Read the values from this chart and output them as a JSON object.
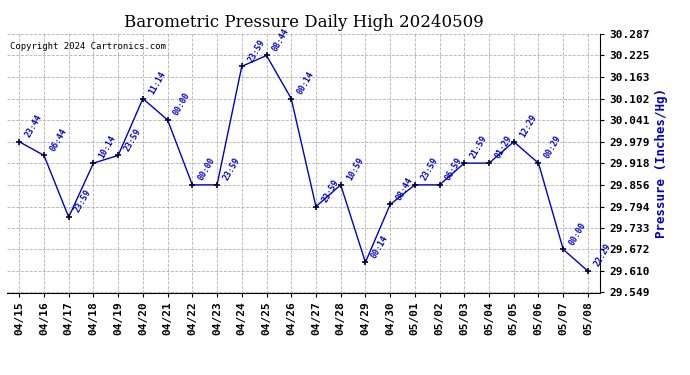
{
  "title": "Barometric Pressure Daily High 20240509",
  "ylabel": "Pressure (Inches/Hg)",
  "copyright": "Copyright 2024 Cartronics.com",
  "ylim": [
    29.549,
    30.287
  ],
  "yticks": [
    29.549,
    29.61,
    29.672,
    29.733,
    29.794,
    29.856,
    29.918,
    29.979,
    30.041,
    30.102,
    30.163,
    30.225,
    30.287
  ],
  "line_color": "#0000CC",
  "marker_color": "#000033",
  "dates": [
    "04/15",
    "04/16",
    "04/17",
    "04/18",
    "04/19",
    "04/20",
    "04/21",
    "04/22",
    "04/23",
    "04/24",
    "04/25",
    "04/26",
    "04/27",
    "04/28",
    "04/29",
    "04/30",
    "05/01",
    "05/02",
    "05/03",
    "05/04",
    "05/05",
    "05/06",
    "05/07",
    "05/08"
  ],
  "values": [
    29.979,
    29.94,
    29.764,
    29.918,
    29.94,
    30.102,
    30.041,
    29.856,
    29.856,
    30.194,
    30.225,
    30.102,
    29.794,
    29.856,
    29.635,
    29.8,
    29.856,
    29.856,
    29.918,
    29.918,
    29.979,
    29.918,
    29.672,
    29.61
  ],
  "point_labels": [
    "23:44",
    "06:44",
    "23:59",
    "10:14",
    "23:59",
    "11:14",
    "00:00",
    "00:00",
    "23:59",
    "23:59",
    "08:44",
    "00:14",
    "23:59",
    "10:59",
    "00:14",
    "08:44",
    "23:59",
    "06:59",
    "21:59",
    "01:29",
    "12:29",
    "00:29",
    "00:00",
    "22:29"
  ],
  "bg_color": "#ffffff",
  "grid_color": "#aaaaaa",
  "title_fontsize": 12,
  "ylabel_fontsize": 9,
  "tick_fontsize": 8,
  "point_label_fontsize": 6
}
